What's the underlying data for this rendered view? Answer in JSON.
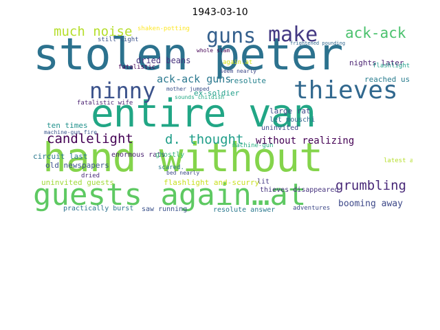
{
  "title": "1943-03-10",
  "words": [
    {
      "text": "stolen peter",
      "color": "#2c728e"
    },
    {
      "text": "entire van",
      "color": "#21a685"
    },
    {
      "text": "hand without",
      "color": "#84d44b"
    },
    {
      "text": "guests again…at",
      "color": "#5ec962"
    },
    {
      "text": "thieves",
      "color": "#31688e"
    },
    {
      "text": "ninny",
      "color": "#3b528b"
    },
    {
      "text": "guns",
      "color": "#35608d"
    },
    {
      "text": "make",
      "color": "#443983"
    },
    {
      "text": "ack-ack",
      "color": "#4ac16d"
    },
    {
      "text": "much noise",
      "color": "#b5de2b"
    },
    {
      "text": "ack-ack guns",
      "color": "#2a788e"
    },
    {
      "text": "candlelight",
      "color": "#440154"
    },
    {
      "text": "d. thought",
      "color": "#1f9e89"
    },
    {
      "text": "grumbling",
      "color": "#482878"
    },
    {
      "text": "booming away",
      "color": "#3e4989"
    },
    {
      "text": "without realizing",
      "color": "#440154"
    },
    {
      "text": "dried beans",
      "color": "#46337e"
    },
    {
      "text": "fatalistic",
      "color": "#440154"
    },
    {
      "text": "ten times",
      "color": "#21918c"
    },
    {
      "text": "circuit last",
      "color": "#2a788e"
    },
    {
      "text": "old newspapers",
      "color": "#3b528b"
    },
    {
      "text": "enormous rats",
      "color": "#481f70"
    },
    {
      "text": "ex-soldier",
      "color": "#1f9e89"
    },
    {
      "text": "resolute",
      "color": "#26828e"
    },
    {
      "text": "reached us",
      "color": "#287c8e"
    },
    {
      "text": "nights later",
      "color": "#481f70"
    },
    {
      "text": "large rat",
      "color": "#3e4989"
    },
    {
      "text": "let mouschi",
      "color": "#31688e"
    },
    {
      "text": "uninvited",
      "color": "#3e4989"
    },
    {
      "text": "uninvited guests",
      "color": "#a0da39"
    },
    {
      "text": "flashlight and-scurry",
      "color": "#c8e020"
    },
    {
      "text": "practically burst",
      "color": "#2c728e"
    },
    {
      "text": "saw running",
      "color": "#3b528b"
    },
    {
      "text": "resolute answer",
      "color": "#2a788e"
    },
    {
      "text": "adventures",
      "color": "#3e4989"
    },
    {
      "text": "thieves disappeared",
      "color": "#46337e"
    },
    {
      "text": "machine-gun",
      "color": "#27ad81"
    },
    {
      "text": "machine-gun fire",
      "color": "#39568c"
    },
    {
      "text": "shaken-potting",
      "color": "#fde725"
    },
    {
      "text": "still light",
      "color": "#3b528b"
    },
    {
      "text": "whole slam",
      "color": "#440154"
    },
    {
      "text": "mother jumped",
      "color": "#3b528b"
    },
    {
      "text": "sounds childish",
      "color": "#22a884"
    },
    {
      "text": "seem nearly",
      "color": "#3e4989"
    },
    {
      "text": "ghostly",
      "color": "#35b779"
    },
    {
      "text": "scared.",
      "color": "#2a788e"
    },
    {
      "text": "lit",
      "color": "#443983"
    },
    {
      "text": "dried",
      "color": "#482878"
    },
    {
      "text": "again.at",
      "color": "#d2e21b"
    },
    {
      "text": "fatalistic wife",
      "color": "#481f70"
    },
    {
      "text": "flashlight",
      "color": "#1f9e89"
    },
    {
      "text": "frightened pounding",
      "color": "#31688e"
    },
    {
      "text": "latest adventures",
      "color": "#b5de2b"
    },
    {
      "text": "bed nearly",
      "color": "#3e4989"
    }
  ]
}
